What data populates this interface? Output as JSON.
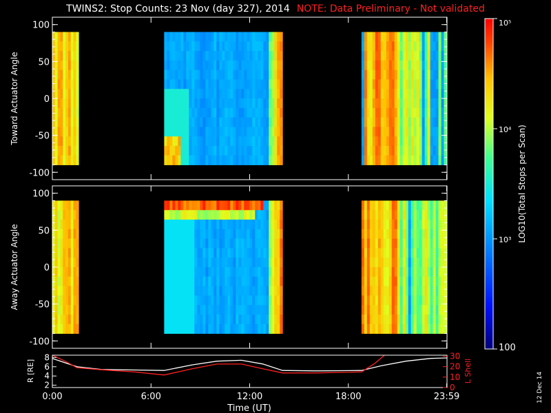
{
  "chart_data": [
    {
      "type": "heatmap",
      "title": "TWINS2: Stop Counts: 23 Nov (day 327), 2014",
      "note": "NOTE: Data Preliminary - Not validated",
      "ylabel": "Toward Actuator Angle",
      "ylim": [
        -110,
        110
      ],
      "yticks": [
        "100",
        "50",
        "0",
        "-50",
        "-100"
      ],
      "data_angle_range": [
        -90,
        90
      ],
      "xlim_hours": [
        0,
        24
      ],
      "data_intervals_hours": [
        [
          0.0,
          1.6
        ],
        [
          6.8,
          14.0
        ],
        [
          18.8,
          23.98
        ]
      ],
      "gaps_hours": [
        [
          1.6,
          6.8
        ],
        [
          14.0,
          18.8
        ]
      ]
    },
    {
      "type": "heatmap",
      "ylabel": "Away Actuator Angle",
      "ylim": [
        -110,
        110
      ],
      "yticks": [
        "100",
        "50",
        "0",
        "-50",
        "-100"
      ],
      "data_angle_range": [
        -90,
        90
      ],
      "xlim_hours": [
        0,
        24
      ],
      "data_intervals_hours": [
        [
          0.0,
          1.6
        ],
        [
          6.8,
          14.0
        ],
        [
          18.8,
          23.98
        ]
      ],
      "gaps_hours": [
        [
          1.6,
          6.8
        ],
        [
          14.0,
          18.8
        ]
      ]
    },
    {
      "type": "line",
      "ylabel_left": "R [RE]",
      "ylabel_right": "L Shell",
      "ylim_left": [
        1.5,
        8.5
      ],
      "yticks_left": [
        "2",
        "4",
        "6",
        "8"
      ],
      "ylim_right": [
        0,
        31
      ],
      "yticks_right": [
        "0",
        "10",
        "20",
        "30"
      ],
      "xlabel": "Time (UT)",
      "xticks": [
        "0:00",
        "6:00",
        "12:00",
        "18:00",
        "23:59"
      ],
      "xtick_hours": [
        0,
        6,
        12,
        18,
        23.98
      ],
      "series": [
        {
          "name": "R [RE]",
          "color": "#ffffff",
          "x": [
            0.0,
            1.5,
            3.0,
            5.0,
            6.8,
            8.5,
            10.0,
            11.5,
            12.8,
            14.0,
            16.0,
            18.8,
            20.0,
            21.5,
            23.0,
            23.98
          ],
          "y": [
            7.8,
            6.0,
            5.4,
            5.3,
            5.2,
            6.4,
            7.2,
            7.4,
            6.6,
            5.2,
            5.1,
            5.2,
            6.2,
            7.2,
            7.8,
            7.9
          ]
        },
        {
          "name": "L Shell",
          "color": "#ff2020",
          "x": [
            0.0,
            0.8,
            1.5,
            3.0,
            5.0,
            6.8,
            8.5,
            10.0,
            11.5,
            12.8,
            14.0,
            16.0,
            18.8,
            19.6,
            20.2
          ],
          "y": [
            31,
            25,
            19,
            17,
            15,
            12,
            18,
            22.5,
            22.5,
            18,
            14,
            14,
            15,
            23,
            31
          ]
        }
      ]
    }
  ],
  "colorbar": {
    "label": "LOG10(Total Stops per Scan)",
    "tick_labels": [
      "10⁵",
      "10⁴",
      "10³",
      "100"
    ],
    "tick_values": [
      100000,
      10000,
      1000,
      100
    ],
    "range": [
      100,
      100000
    ],
    "scale": "log"
  },
  "date_stamp": "12 Dec 14"
}
